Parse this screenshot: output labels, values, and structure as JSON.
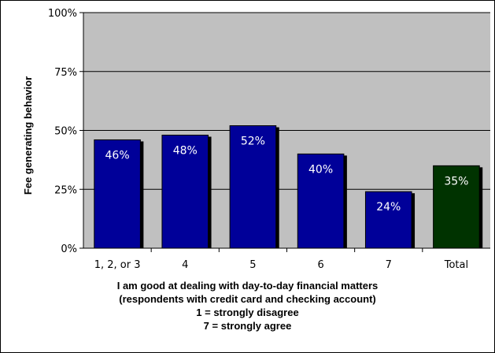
{
  "chart_data": {
    "type": "bar",
    "ylabel": "Fee generating behavior",
    "xlabel_lines": [
      "I am good at dealing with day-to-day financial matters",
      "(respondents with credit card and checking account)",
      "1 = strongly disagree",
      "7 = strongly agree"
    ],
    "categories": [
      "1, 2, or 3",
      "4",
      "5",
      "6",
      "7",
      "Total"
    ],
    "values": [
      46,
      48,
      52,
      40,
      24,
      35
    ],
    "data_labels": [
      "46%",
      "48%",
      "52%",
      "40%",
      "24%",
      "35%"
    ],
    "ylim": [
      0,
      100
    ],
    "y_ticks": [
      0,
      25,
      50,
      75,
      100
    ],
    "y_tick_labels": [
      "0%",
      "25%",
      "50%",
      "75%",
      "100%"
    ],
    "grid": true,
    "colors": {
      "plot_background": "#c0c0c0",
      "bar": "#000099",
      "total_bar": "#003300",
      "shadow": "#000000",
      "gridline": "#000000"
    }
  }
}
